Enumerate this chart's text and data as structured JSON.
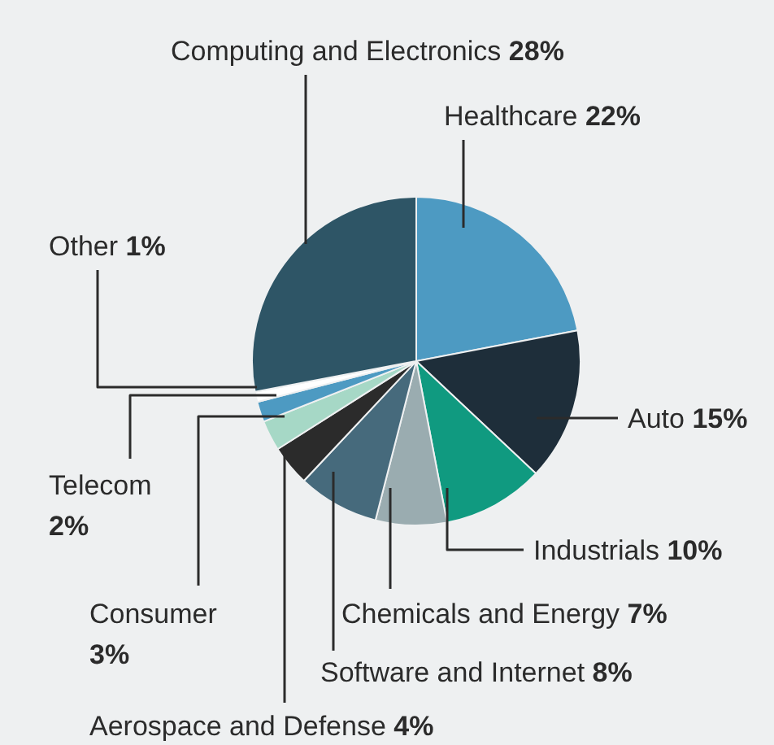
{
  "chart_data": {
    "type": "pie",
    "categories": [
      "Healthcare",
      "Auto",
      "Industrials",
      "Chemicals and Energy",
      "Software and Internet",
      "Aerospace and Defense",
      "Consumer",
      "Telecom",
      "Other",
      "Computing and Electronics"
    ],
    "values": [
      22,
      15,
      10,
      7,
      8,
      4,
      3,
      2,
      1,
      28
    ],
    "value_labels": [
      "22%",
      "15%",
      "10%",
      "7%",
      "8%",
      "4%",
      "3%",
      "2%",
      "1%",
      "28%"
    ],
    "colors": [
      "#4d9ac2",
      "#1e2e3a",
      "#109a80",
      "#9aacb0",
      "#466a7c",
      "#2b2b2b",
      "#a6d8c6",
      "#4d9ac2",
      "#ffffff",
      "#2e5566"
    ]
  }
}
